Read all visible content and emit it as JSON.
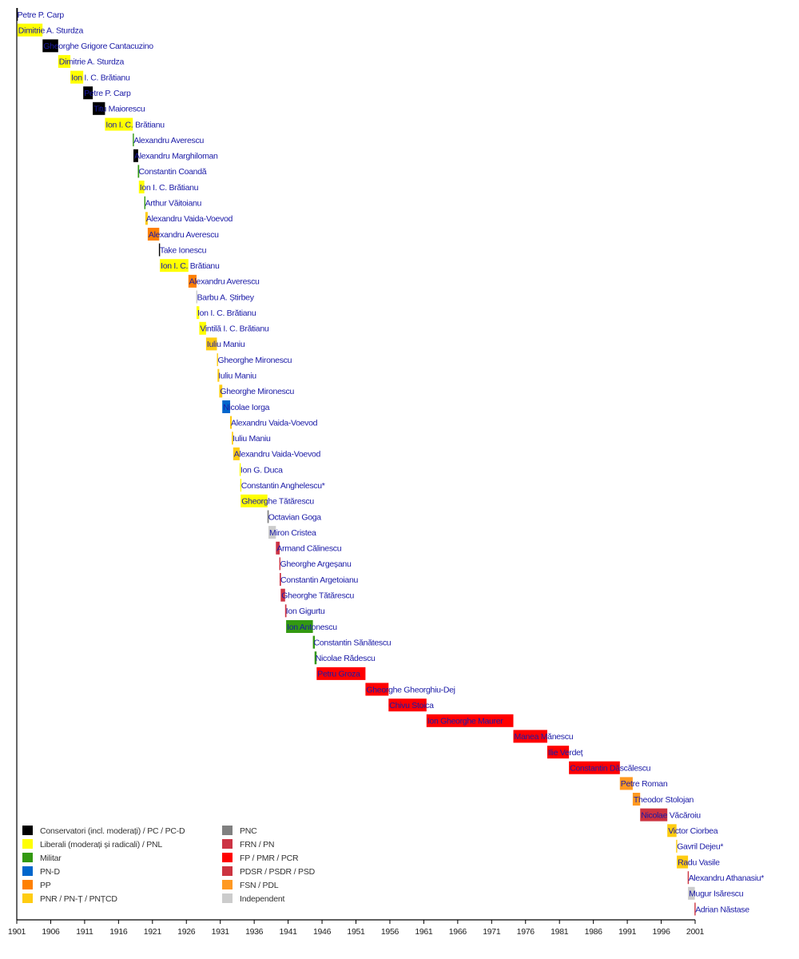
{
  "chart_data": {
    "type": "timeline",
    "title": "",
    "xlabel": "",
    "ylabel": "",
    "xlim": [
      1901,
      2001
    ],
    "x_ticks": [
      "1901",
      "1906",
      "1911",
      "1916",
      "1921",
      "1926",
      "1931",
      "1936",
      "1941",
      "1946",
      "1951",
      "1956",
      "1961",
      "1966",
      "1971",
      "1976",
      "1981",
      "1986",
      "1991",
      "1996",
      "2001"
    ],
    "grid": false,
    "legend_position": "bottom-left",
    "parties": [
      {
        "key": "conservatori",
        "label": "Conservatori (incl. moderați) / PC / PC-D",
        "color": "#000000"
      },
      {
        "key": "liberali",
        "label": "Liberali (moderați și radicali) / PNL",
        "color": "#ffff00"
      },
      {
        "key": "militar",
        "label": "Militar",
        "color": "#339911"
      },
      {
        "key": "pnd",
        "label": "PN-D",
        "color": "#0066cc"
      },
      {
        "key": "pp",
        "label": "PP",
        "color": "#ff8000"
      },
      {
        "key": "pnr",
        "label": "PNR / PN-Ț / PNȚCD",
        "color": "#ffcc11"
      },
      {
        "key": "pnc",
        "label": "PNC",
        "color": "#808080"
      },
      {
        "key": "frn",
        "label": "FRN / PN",
        "color": "#cc3344"
      },
      {
        "key": "fp",
        "label": "FP / PMR / PCR",
        "color": "#ff0000"
      },
      {
        "key": "pdsr",
        "label": "PDSR / PSDR / PSD",
        "color": "#cc3340"
      },
      {
        "key": "fsn",
        "label": "FSN / PDL",
        "color": "#ff9922"
      },
      {
        "key": "independent",
        "label": "Independent",
        "color": "#cccccc"
      }
    ],
    "series": [
      {
        "name": "Petre P. Carp",
        "start": 1900.95,
        "end": 1901.15,
        "party": "conservatori"
      },
      {
        "name": "Dimitrie A. Sturdza",
        "start": 1901.1,
        "end": 1904.8,
        "party": "liberali"
      },
      {
        "name": "Gheorghe Grigore Cantacuzino",
        "start": 1904.8,
        "end": 1907.1,
        "party": "conservatori"
      },
      {
        "name": "Dimitrie A. Sturdza",
        "start": 1907.1,
        "end": 1908.9,
        "party": "liberali"
      },
      {
        "name": "Ion I. C. Brătianu",
        "start": 1908.9,
        "end": 1910.8,
        "party": "liberali"
      },
      {
        "name": "Petre P. Carp",
        "start": 1910.8,
        "end": 1912.2,
        "party": "conservatori"
      },
      {
        "name": "Titu Maiorescu",
        "start": 1912.2,
        "end": 1914.0,
        "party": "conservatori"
      },
      {
        "name": "Ion I. C. Brătianu",
        "start": 1914.0,
        "end": 1918.1,
        "party": "liberali"
      },
      {
        "name": "Alexandru Averescu",
        "start": 1918.1,
        "end": 1918.2,
        "party": "militar"
      },
      {
        "name": "Alexandru Marghiloman",
        "start": 1918.2,
        "end": 1918.9,
        "party": "conservatori"
      },
      {
        "name": "Constantin Coandă",
        "start": 1918.85,
        "end": 1919.05,
        "party": "militar"
      },
      {
        "name": "Ion I. C. Brătianu",
        "start": 1919.0,
        "end": 1919.8,
        "party": "liberali"
      },
      {
        "name": "Arthur Văitoianu",
        "start": 1919.8,
        "end": 1919.95,
        "party": "militar"
      },
      {
        "name": "Alexandru Vaida-Voevod",
        "start": 1919.95,
        "end": 1920.3,
        "party": "pnr"
      },
      {
        "name": "Alexandru Averescu",
        "start": 1920.3,
        "end": 1922.0,
        "party": "pp"
      },
      {
        "name": "Take Ionescu",
        "start": 1921.95,
        "end": 1922.1,
        "party": "conservatori"
      },
      {
        "name": "Ion I. C. Brătianu",
        "start": 1922.1,
        "end": 1926.3,
        "party": "liberali"
      },
      {
        "name": "Alexandru Averescu",
        "start": 1926.3,
        "end": 1927.5,
        "party": "pp"
      },
      {
        "name": "Barbu A. Știrbey",
        "start": 1927.45,
        "end": 1927.55,
        "party": "independent"
      },
      {
        "name": "Ion I. C. Brătianu",
        "start": 1927.5,
        "end": 1927.9,
        "party": "liberali"
      },
      {
        "name": "Vintilă I. C. Brătianu",
        "start": 1927.9,
        "end": 1928.9,
        "party": "liberali"
      },
      {
        "name": "Iuliu Maniu",
        "start": 1928.9,
        "end": 1930.5,
        "party": "pnr"
      },
      {
        "name": "Gheorghe Mironescu",
        "start": 1930.5,
        "end": 1930.6,
        "party": "pnr"
      },
      {
        "name": "Iuliu Maniu",
        "start": 1930.6,
        "end": 1930.85,
        "party": "pnr"
      },
      {
        "name": "Gheorghe Mironescu",
        "start": 1930.85,
        "end": 1931.3,
        "party": "pnr"
      },
      {
        "name": "Nicolae Iorga",
        "start": 1931.3,
        "end": 1932.45,
        "party": "pnd"
      },
      {
        "name": "Alexandru Vaida-Voevod",
        "start": 1932.45,
        "end": 1932.7,
        "party": "pnr"
      },
      {
        "name": "Iuliu Maniu",
        "start": 1932.7,
        "end": 1932.9,
        "party": "pnr"
      },
      {
        "name": "Alexandru Vaida-Voevod",
        "start": 1932.9,
        "end": 1933.85,
        "party": "pnr"
      },
      {
        "name": "Ion G. Duca",
        "start": 1933.85,
        "end": 1934.0,
        "party": "liberali"
      },
      {
        "name": "Constantin Anghelescu*",
        "start": 1933.95,
        "end": 1934.05,
        "party": "liberali"
      },
      {
        "name": "Gheorghe Tătărescu",
        "start": 1934.0,
        "end": 1937.95,
        "party": "liberali"
      },
      {
        "name": "Octavian Goga",
        "start": 1937.95,
        "end": 1938.15,
        "party": "pnc"
      },
      {
        "name": "Miron Cristea",
        "start": 1938.1,
        "end": 1939.2,
        "party": "independent"
      },
      {
        "name": "Armand Călinescu",
        "start": 1939.2,
        "end": 1939.75,
        "party": "frn"
      },
      {
        "name": "Gheorghe Argeșanu",
        "start": 1939.7,
        "end": 1939.8,
        "party": "frn"
      },
      {
        "name": "Constantin Argetoianu",
        "start": 1939.75,
        "end": 1939.95,
        "party": "frn"
      },
      {
        "name": "Gheorghe Tătărescu",
        "start": 1939.9,
        "end": 1940.55,
        "party": "frn"
      },
      {
        "name": "Ion Gigurtu",
        "start": 1940.55,
        "end": 1940.75,
        "party": "frn"
      },
      {
        "name": "Ion Antonescu",
        "start": 1940.7,
        "end": 1944.65,
        "party": "militar"
      },
      {
        "name": "Constantin Sănătescu",
        "start": 1944.65,
        "end": 1944.95,
        "party": "militar"
      },
      {
        "name": "Nicolae Rădescu",
        "start": 1944.9,
        "end": 1945.2,
        "party": "militar"
      },
      {
        "name": "Petru Groza",
        "start": 1945.2,
        "end": 1952.4,
        "party": "fp"
      },
      {
        "name": "Gheorghe Gheorghiu-Dej",
        "start": 1952.4,
        "end": 1955.8,
        "party": "fp"
      },
      {
        "name": "Chivu Stoica",
        "start": 1955.8,
        "end": 1961.4,
        "party": "fp"
      },
      {
        "name": "Ion Gheorghe Maurer",
        "start": 1961.4,
        "end": 1974.2,
        "party": "fp"
      },
      {
        "name": "Manea Mănescu",
        "start": 1974.2,
        "end": 1979.2,
        "party": "fp"
      },
      {
        "name": "Ilie Verdeț",
        "start": 1979.2,
        "end": 1982.4,
        "party": "fp"
      },
      {
        "name": "Constantin Dăscălescu",
        "start": 1982.4,
        "end": 1989.9,
        "party": "fp"
      },
      {
        "name": "Petre Roman",
        "start": 1989.9,
        "end": 1991.8,
        "party": "fsn"
      },
      {
        "name": "Theodor Stolojan",
        "start": 1991.8,
        "end": 1992.9,
        "party": "fsn"
      },
      {
        "name": "Nicolae Văcăroiu",
        "start": 1992.9,
        "end": 1996.9,
        "party": "pdsr"
      },
      {
        "name": "Victor Ciorbea",
        "start": 1996.9,
        "end": 1998.25,
        "party": "pnr"
      },
      {
        "name": "Gavril Dejeu*",
        "start": 1998.2,
        "end": 1998.35,
        "party": "pnr"
      },
      {
        "name": "Radu Vasile",
        "start": 1998.3,
        "end": 1999.95,
        "party": "pnr"
      },
      {
        "name": "Alexandru Athanasiu*",
        "start": 1999.9,
        "end": 2000.0,
        "party": "pdsr"
      },
      {
        "name": "Mugur Isărescu",
        "start": 1999.95,
        "end": 2000.95,
        "party": "independent"
      },
      {
        "name": "Adrian Năstase",
        "start": 2000.9,
        "end": 2001.0,
        "party": "pdsr"
      }
    ]
  }
}
